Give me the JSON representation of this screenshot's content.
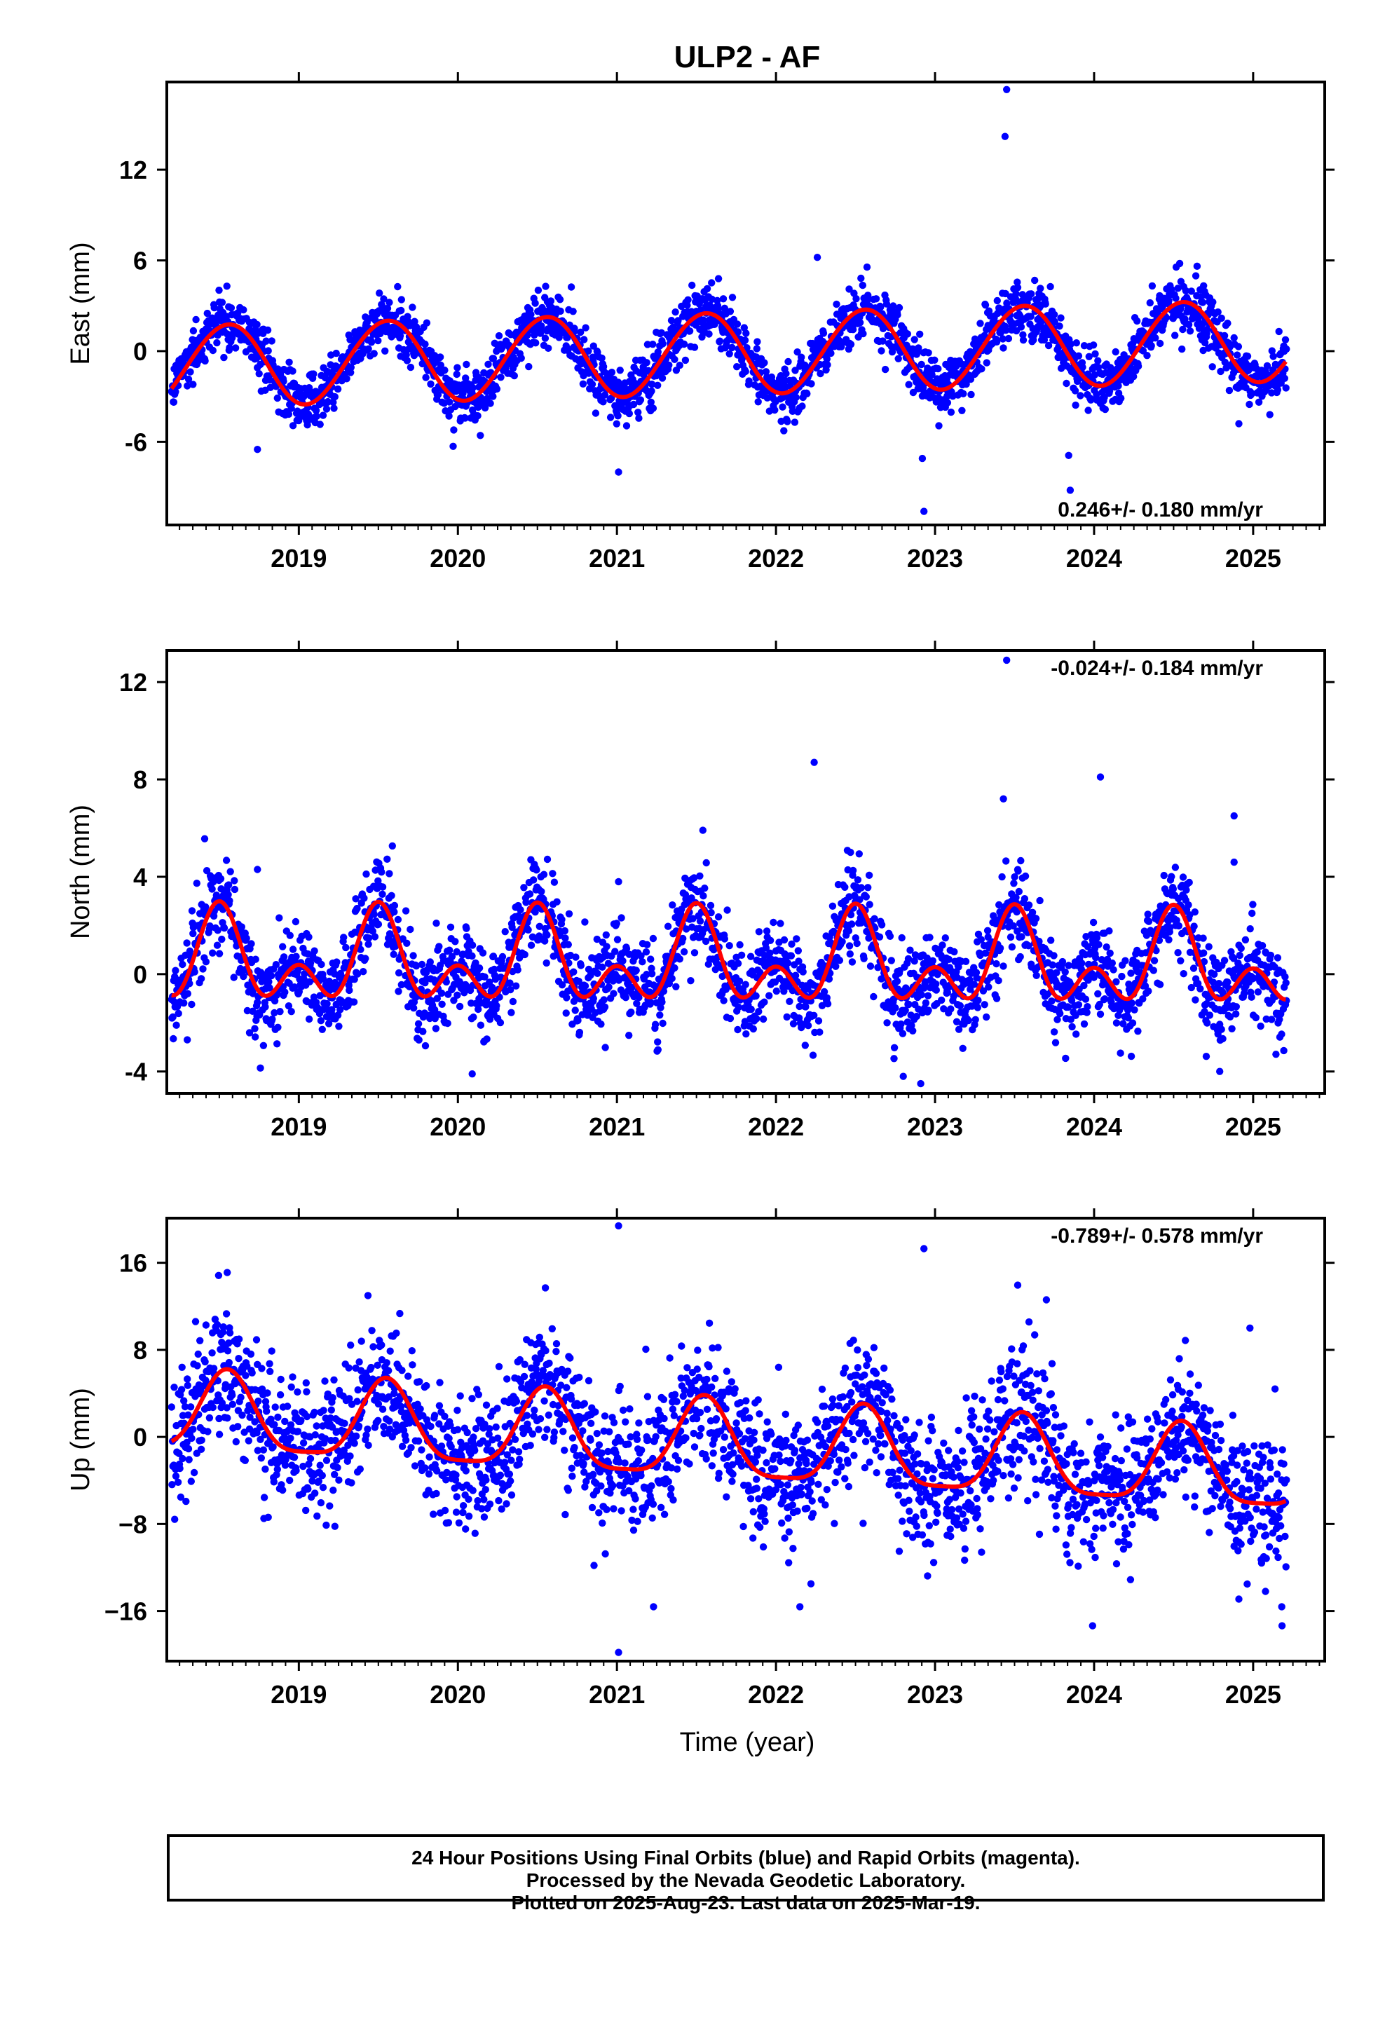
{
  "title": "ULP2 - AF",
  "xlabel": "Time (year)",
  "footer": {
    "line1": "24 Hour Positions Using Final Orbits (blue) and Rapid Orbits (magenta).",
    "line2": "Processed by the Nevada Geodetic Laboratory.",
    "line3": "Plotted on 2025-Aug-23. Last data on 2025-Mar-19."
  },
  "colors": {
    "points": "#0000ff",
    "fit": "#ff0000",
    "frame": "#000000"
  },
  "chart_data": [
    {
      "type": "scatter",
      "id": "east",
      "ylabel": "East (mm)",
      "rate_text": "0.246+/- 0.180 mm/yr",
      "rate_position": "bottom-right",
      "xlim": [
        2018.17,
        2025.45
      ],
      "ylim": [
        -11.5,
        17.8
      ],
      "yticks": [
        -6,
        0,
        6,
        12
      ],
      "ytick_labels": [
        "-6",
        "0",
        "6",
        "12"
      ],
      "xticks": [
        2019,
        2020,
        2021,
        2022,
        2023,
        2024,
        2025
      ],
      "xtick_labels": [
        "2019",
        "2020",
        "2021",
        "2022",
        "2023",
        "2024",
        "2025"
      ],
      "x_range": [
        2018.2,
        2025.21
      ],
      "trend": {
        "rate": 0.246,
        "offset_at_start": -1.0
      },
      "seasonal": {
        "annual_amplitude": 2.7,
        "annual_peak": 0.55,
        "semiannual_amplitude": 0.1,
        "semiannual_peak": 0.2
      },
      "scatter_sd": 0.95,
      "outliers": [
        {
          "x": 2023.45,
          "y": 17.3
        },
        {
          "x": 2023.44,
          "y": 14.2
        },
        {
          "x": 2022.26,
          "y": 6.2
        },
        {
          "x": 2022.93,
          "y": -10.6
        },
        {
          "x": 2022.92,
          "y": -7.1
        },
        {
          "x": 2023.85,
          "y": -9.2
        },
        {
          "x": 2023.84,
          "y": -6.9
        },
        {
          "x": 2021.01,
          "y": -8.0
        },
        {
          "x": 2018.74,
          "y": -6.5
        },
        {
          "x": 2019.97,
          "y": -6.3
        },
        {
          "x": 2024.91,
          "y": -4.8
        }
      ]
    },
    {
      "type": "scatter",
      "id": "north",
      "ylabel": "North (mm)",
      "rate_text": "-0.024+/- 0.184 mm/yr",
      "rate_position": "top-right",
      "xlim": [
        2018.17,
        2025.45
      ],
      "ylim": [
        -4.9,
        13.3
      ],
      "yticks": [
        -4,
        0,
        4,
        8,
        12
      ],
      "ytick_labels": [
        "-4",
        "0",
        "4",
        "8",
        "12"
      ],
      "xticks": [
        2019,
        2020,
        2021,
        2022,
        2023,
        2024,
        2025
      ],
      "xtick_labels": [
        "2019",
        "2020",
        "2021",
        "2022",
        "2023",
        "2024",
        "2025"
      ],
      "x_range": [
        2018.2,
        2025.21
      ],
      "trend": {
        "rate": -0.024,
        "offset_at_start": 0.5
      },
      "seasonal": {
        "annual_amplitude": 1.3,
        "annual_peak": 0.5,
        "semiannual_amplitude": 1.2,
        "semiannual_peak": 0.5
      },
      "scatter_sd": 0.95,
      "outliers": [
        {
          "x": 2023.45,
          "y": 12.9
        },
        {
          "x": 2022.24,
          "y": 8.7
        },
        {
          "x": 2024.04,
          "y": 8.1
        },
        {
          "x": 2023.43,
          "y": 7.2
        },
        {
          "x": 2024.88,
          "y": 6.5
        },
        {
          "x": 2024.88,
          "y": 4.6
        },
        {
          "x": 2021.01,
          "y": 3.8
        },
        {
          "x": 2018.74,
          "y": 4.3
        },
        {
          "x": 2022.91,
          "y": -4.5
        },
        {
          "x": 2020.09,
          "y": -4.1
        },
        {
          "x": 2022.8,
          "y": -4.2
        },
        {
          "x": 2024.79,
          "y": -4.0
        }
      ]
    },
    {
      "type": "scatter",
      "id": "up",
      "ylabel": "Up (mm)",
      "rate_text": "-0.789+/- 0.578 mm/yr",
      "rate_position": "top-right",
      "xlim": [
        2018.17,
        2025.45
      ],
      "ylim": [
        -20.6,
        20.1
      ],
      "yticks": [
        -16,
        -8,
        0,
        8,
        16
      ],
      "ytick_labels": [
        "−16",
        "−8",
        "0",
        "8",
        "16"
      ],
      "xticks": [
        2019,
        2020,
        2021,
        2022,
        2023,
        2024,
        2025
      ],
      "xtick_labels": [
        "2019",
        "2020",
        "2021",
        "2022",
        "2023",
        "2024",
        "2025"
      ],
      "x_range": [
        2018.2,
        2025.21
      ],
      "trend": {
        "rate": -0.789,
        "offset_at_start": 2.0
      },
      "seasonal": {
        "annual_amplitude": 3.6,
        "annual_peak": 0.55,
        "semiannual_amplitude": 0.9,
        "semiannual_peak": 0.55
      },
      "scatter_sd": 3.1,
      "outliers": [
        {
          "x": 2021.01,
          "y": 19.4
        },
        {
          "x": 2022.93,
          "y": 17.3
        },
        {
          "x": 2021.01,
          "y": -19.8
        },
        {
          "x": 2021.23,
          "y": -15.6
        },
        {
          "x": 2022.15,
          "y": -15.6
        },
        {
          "x": 2025.18,
          "y": -15.6
        },
        {
          "x": 2024.91,
          "y": -14.9
        },
        {
          "x": 2022.22,
          "y": -13.5
        },
        {
          "x": 2018.55,
          "y": 15.1
        },
        {
          "x": 2020.55,
          "y": 13.7
        },
        {
          "x": 2023.7,
          "y": 12.6
        },
        {
          "x": 2024.98,
          "y": 10.0
        }
      ]
    }
  ]
}
